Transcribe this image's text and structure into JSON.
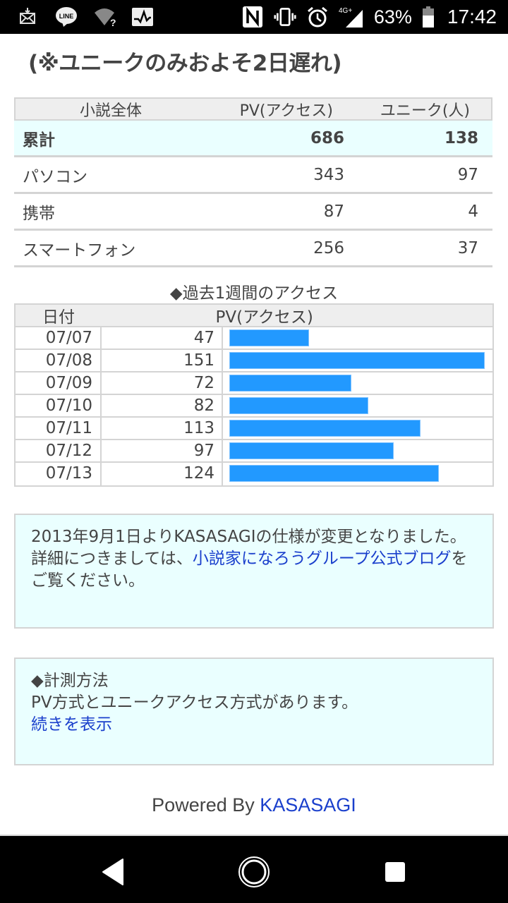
{
  "status_bar": {
    "left_icons": [
      "mail-download-icon",
      "line-app-icon",
      "wifi-unknown-icon",
      "activity-monitor-icon"
    ],
    "right_icons": [
      "nfc-icon",
      "vibrate-icon",
      "alarm-icon",
      "signal-4g-plus-icon",
      "battery-icon"
    ],
    "network": "4G+",
    "battery_percent": "63%",
    "time": "17:42"
  },
  "headline": "(※ユニークのみおよそ2日遅れ)",
  "summary_table": {
    "headers": [
      "小説全体",
      "PV(アクセス)",
      "ユニーク(人)"
    ],
    "rows": [
      {
        "label": "累計",
        "pv": "686",
        "unique": "138",
        "highlight": true
      },
      {
        "label": "パソコン",
        "pv": "343",
        "unique": "97"
      },
      {
        "label": "携帯",
        "pv": "87",
        "unique": "4"
      },
      {
        "label": "スマートフォン",
        "pv": "256",
        "unique": "37"
      }
    ]
  },
  "weekly": {
    "title": "◆過去1週間のアクセス",
    "headers": [
      "日付",
      "PV(アクセス)"
    ],
    "bar_color": "#2299ff",
    "rows": [
      {
        "date": "07/07",
        "pv": "47"
      },
      {
        "date": "07/08",
        "pv": "151"
      },
      {
        "date": "07/09",
        "pv": "72"
      },
      {
        "date": "07/10",
        "pv": "82"
      },
      {
        "date": "07/11",
        "pv": "113"
      },
      {
        "date": "07/12",
        "pv": "97"
      },
      {
        "date": "07/13",
        "pv": "124"
      }
    ]
  },
  "notice": {
    "line1": "2013年9月1日よりKASASAGIの仕様が変更となりました。",
    "line2_prefix": "詳細につきましては、",
    "link_text": "小説家になろうグループ公式ブログ",
    "line2_suffix": "をご覧ください。"
  },
  "measurement": {
    "title": "◆計測方法",
    "body": "PV方式とユニークアクセス方式があります。",
    "link_text": "続きを表示"
  },
  "footer": {
    "powered_by": "Powered By ",
    "brand_link": "KASASAGI"
  },
  "nav_bar": {
    "buttons": [
      "back-icon",
      "home-icon",
      "recents-icon"
    ]
  }
}
